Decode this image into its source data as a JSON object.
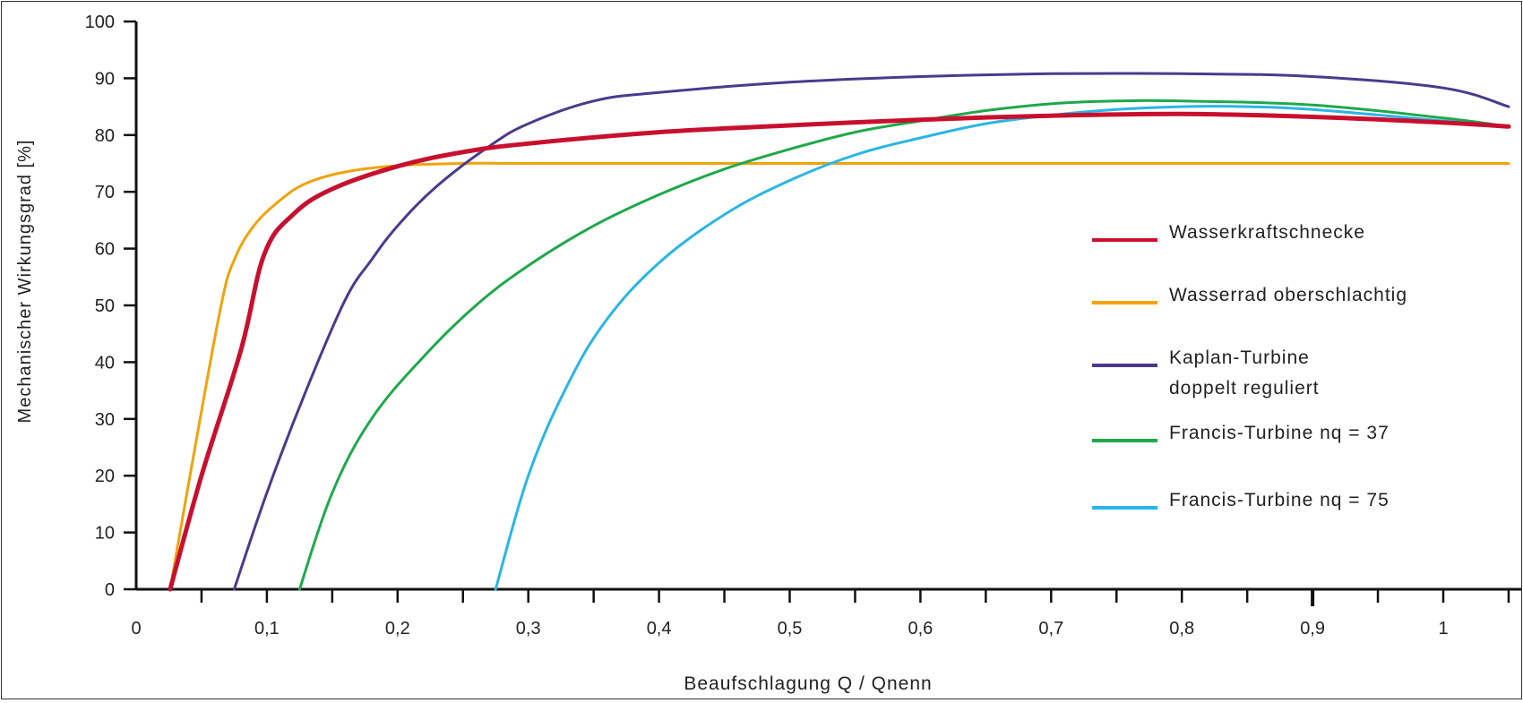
{
  "chart_data": {
    "type": "line",
    "title": "",
    "xlabel": "Beaufschlagung Q / Qnenn",
    "ylabel": "Mechanischer Wirkungsgrad [%]",
    "xlim": [
      0,
      1.05
    ],
    "ylim": [
      0,
      100
    ],
    "x_ticks": [
      "0",
      "0,1",
      "0,2",
      "0,3",
      "0,4",
      "0,5",
      "0,6",
      "0,7",
      "0,8",
      "0,9",
      "1"
    ],
    "x_tick_values": [
      0,
      0.1,
      0.2,
      0.3,
      0.4,
      0.5,
      0.6,
      0.7,
      0.8,
      0.9,
      1.0
    ],
    "y_ticks": [
      "0",
      "10",
      "20",
      "30",
      "40",
      "50",
      "60",
      "70",
      "80",
      "90",
      "100"
    ],
    "y_tick_values": [
      0,
      10,
      20,
      30,
      40,
      50,
      60,
      70,
      80,
      90,
      100
    ],
    "grid": false,
    "legend_position": "right",
    "series": [
      {
        "name": "Wasserkraftschnecke",
        "label_lines": [
          "Wasserkraftschnecke"
        ],
        "color": "#c8102e",
        "x": [
          0.026,
          0.05,
          0.08,
          0.098,
          0.12,
          0.15,
          0.2,
          0.25,
          0.3,
          0.4,
          0.5,
          0.6,
          0.7,
          0.8,
          0.9,
          1.0,
          1.05
        ],
        "y": [
          0,
          20,
          42,
          59,
          66,
          70.5,
          74.5,
          77,
          78.5,
          80.5,
          81.7,
          82.7,
          83.4,
          83.7,
          83.2,
          82.2,
          81.5
        ]
      },
      {
        "name": "Wasserrad oberschlachtig",
        "label_lines": [
          "Wasserrad oberschlachtig"
        ],
        "color": "#f0a30a",
        "x": [
          0.026,
          0.045,
          0.065,
          0.075,
          0.09,
          0.11,
          0.13,
          0.16,
          0.2,
          0.25,
          0.3,
          0.4,
          0.5,
          0.6,
          0.7,
          0.8,
          0.9,
          1.0,
          1.05
        ],
        "y": [
          0,
          25,
          50,
          58,
          64,
          68.5,
          71.5,
          73.5,
          74.6,
          75,
          75,
          75,
          75,
          75,
          75,
          75,
          75,
          75,
          75
        ]
      },
      {
        "name": "Kaplan-Turbine doppelt reguliert",
        "label_lines": [
          "Kaplan-Turbine",
          "doppelt reguliert"
        ],
        "color": "#4b3a8c",
        "x": [
          0.075,
          0.1,
          0.13,
          0.16,
          0.18,
          0.2,
          0.23,
          0.27,
          0.3,
          0.35,
          0.4,
          0.5,
          0.6,
          0.7,
          0.8,
          0.9,
          1.0,
          1.05
        ],
        "y": [
          0,
          17,
          35,
          51,
          58,
          64,
          71,
          78,
          82,
          86,
          87.5,
          89.3,
          90.3,
          90.8,
          90.8,
          90.3,
          88.3,
          85
        ]
      },
      {
        "name": "Francis-Turbine nq = 37",
        "label_lines": [
          "Francis-Turbine nq = 37"
        ],
        "color": "#1fa84b",
        "x": [
          0.125,
          0.15,
          0.18,
          0.22,
          0.26,
          0.3,
          0.35,
          0.4,
          0.45,
          0.5,
          0.55,
          0.6,
          0.65,
          0.7,
          0.75,
          0.8,
          0.9,
          1.0,
          1.05
        ],
        "y": [
          0,
          17,
          30,
          41,
          50,
          57,
          64,
          69.5,
          74,
          77.5,
          80.5,
          82.5,
          84.3,
          85.5,
          86,
          86,
          85.3,
          83,
          81.5
        ]
      },
      {
        "name": "Francis-Turbine nq = 75",
        "label_lines": [
          "Francis-Turbine nq = 75"
        ],
        "color": "#29b6e6",
        "x": [
          0.275,
          0.3,
          0.33,
          0.36,
          0.4,
          0.45,
          0.5,
          0.55,
          0.6,
          0.65,
          0.7,
          0.75,
          0.8,
          0.85,
          0.9,
          1.0,
          1.05
        ],
        "y": [
          0,
          20,
          36,
          47.5,
          57.5,
          66,
          72,
          76.5,
          79.5,
          82,
          83.5,
          84.5,
          85,
          85,
          84.5,
          82.5,
          81.5
        ]
      }
    ]
  }
}
